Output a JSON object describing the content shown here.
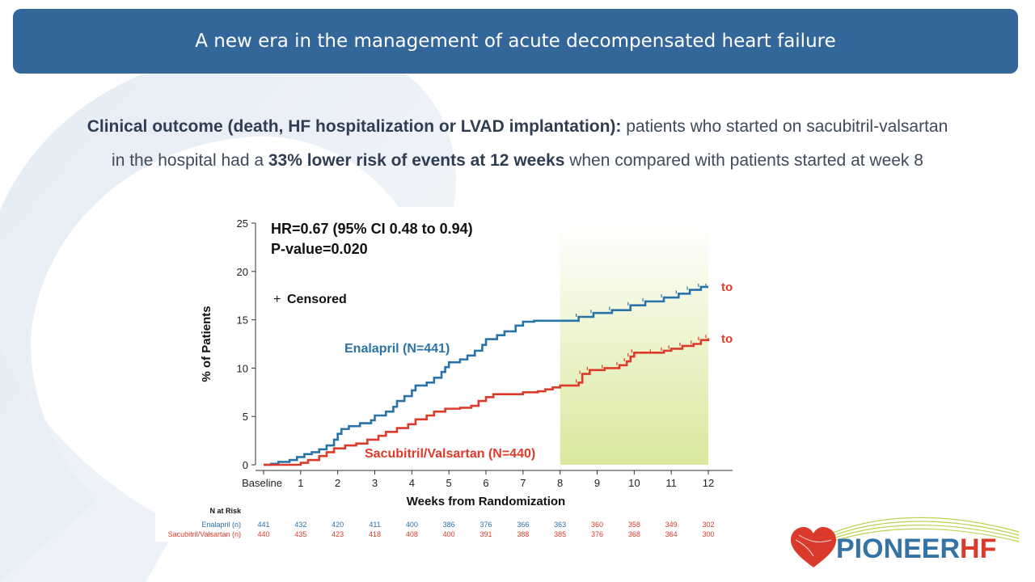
{
  "header": {
    "title": "A new era in the management of acute decompensated heart failure"
  },
  "summary": {
    "line1_bold": "Clinical outcome (death, HF hospitalization or LVAD implantation):",
    "line1_rest": " patients who started on sacubitril-valsartan",
    "line2_start": "in the hospital had a ",
    "line2_bold": "33% lower risk of events at 12 weeks",
    "line2_end": " when compared with patients started at week 8"
  },
  "chart_data": {
    "type": "line",
    "step": true,
    "xlabel": "Weeks from Randomization",
    "ylabel": "% of Patients",
    "xlim": [
      0,
      12
    ],
    "ylim": [
      0,
      25
    ],
    "x_ticks": [
      "Baseline",
      "1",
      "2",
      "3",
      "4",
      "5",
      "6",
      "7",
      "8",
      "9",
      "10",
      "11",
      "12"
    ],
    "y_ticks": [
      "0",
      "5",
      "10",
      "15",
      "20",
      "25"
    ],
    "annotations": {
      "hr": "HR=0.67 (95% CI 0.48 to 0.94)",
      "pvalue": "P-value=0.020",
      "censored": "Censored",
      "censored_symbol": "+",
      "switch_label_1": "to Sacubitril/Valsartan",
      "switch_label_2": "to Sacubitril/Valsartan"
    },
    "shaded_region": {
      "x": [
        8,
        12
      ],
      "color": "#d9e89c"
    },
    "series": [
      {
        "name": "Enalapril (N=441)",
        "color": "#2a73a8",
        "points": [
          [
            0,
            0
          ],
          [
            0.2,
            0.1
          ],
          [
            0.4,
            0.3
          ],
          [
            0.7,
            0.5
          ],
          [
            0.9,
            0.8
          ],
          [
            1.1,
            1.1
          ],
          [
            1.3,
            1.3
          ],
          [
            1.5,
            1.6
          ],
          [
            1.7,
            2.0
          ],
          [
            1.9,
            2.6
          ],
          [
            2.0,
            3.2
          ],
          [
            2.1,
            3.7
          ],
          [
            2.3,
            4.0
          ],
          [
            2.6,
            4.3
          ],
          [
            2.9,
            4.6
          ],
          [
            3.0,
            5.1
          ],
          [
            3.3,
            5.5
          ],
          [
            3.5,
            6.0
          ],
          [
            3.6,
            6.6
          ],
          [
            3.8,
            7.1
          ],
          [
            4.0,
            7.7
          ],
          [
            4.1,
            8.2
          ],
          [
            4.4,
            8.5
          ],
          [
            4.6,
            9.0
          ],
          [
            4.8,
            9.6
          ],
          [
            4.9,
            10.1
          ],
          [
            5.0,
            10.6
          ],
          [
            5.3,
            10.9
          ],
          [
            5.5,
            11.3
          ],
          [
            5.7,
            11.8
          ],
          [
            5.9,
            12.4
          ],
          [
            6.0,
            13.0
          ],
          [
            6.3,
            13.4
          ],
          [
            6.5,
            13.8
          ],
          [
            6.8,
            14.4
          ],
          [
            7.0,
            14.8
          ],
          [
            7.3,
            14.9
          ],
          [
            8.0,
            14.9
          ],
          [
            8.5,
            15.3
          ],
          [
            8.9,
            15.7
          ],
          [
            9.4,
            16.0
          ],
          [
            9.9,
            16.5
          ],
          [
            10.3,
            16.9
          ],
          [
            10.8,
            17.3
          ],
          [
            11.2,
            17.7
          ],
          [
            11.5,
            18.1
          ],
          [
            11.8,
            18.4
          ],
          [
            12.0,
            18.4
          ]
        ]
      },
      {
        "name": "Sacubitril/Valsartan (N=440)",
        "color": "#dd3a2b",
        "points": [
          [
            0,
            0
          ],
          [
            0.6,
            0.0
          ],
          [
            1.0,
            0.2
          ],
          [
            1.2,
            0.5
          ],
          [
            1.5,
            0.9
          ],
          [
            1.7,
            1.3
          ],
          [
            1.9,
            1.7
          ],
          [
            2.2,
            2.0
          ],
          [
            2.5,
            2.2
          ],
          [
            2.8,
            2.6
          ],
          [
            3.1,
            3.0
          ],
          [
            3.3,
            3.4
          ],
          [
            3.6,
            3.8
          ],
          [
            3.9,
            4.2
          ],
          [
            4.1,
            4.7
          ],
          [
            4.4,
            5.1
          ],
          [
            4.6,
            5.5
          ],
          [
            4.9,
            5.8
          ],
          [
            5.3,
            5.9
          ],
          [
            5.6,
            6.1
          ],
          [
            5.8,
            6.6
          ],
          [
            6.0,
            7.0
          ],
          [
            6.2,
            7.3
          ],
          [
            6.6,
            7.3
          ],
          [
            7.0,
            7.5
          ],
          [
            7.4,
            7.6
          ],
          [
            7.6,
            7.8
          ],
          [
            7.8,
            8.0
          ],
          [
            8.0,
            8.2
          ],
          [
            8.5,
            8.5
          ],
          [
            8.6,
            9.4
          ],
          [
            8.8,
            9.8
          ],
          [
            9.2,
            10.0
          ],
          [
            9.6,
            10.3
          ],
          [
            9.8,
            10.7
          ],
          [
            9.9,
            11.2
          ],
          [
            10.0,
            11.6
          ],
          [
            10.5,
            11.6
          ],
          [
            10.8,
            11.8
          ],
          [
            11.0,
            12.0
          ],
          [
            11.3,
            12.3
          ],
          [
            11.6,
            12.5
          ],
          [
            11.8,
            12.9
          ],
          [
            12.0,
            13.1
          ]
        ]
      }
    ],
    "risk_table": {
      "title": "N at Risk",
      "rows": [
        {
          "label": "Enalapril (n)",
          "values": [
            "441",
            "432",
            "420",
            "411",
            "400",
            "386",
            "376",
            "366",
            "363",
            "360",
            "358",
            "349",
            "302"
          ]
        },
        {
          "label": "Sacubitril/Valsartan (n)",
          "values": [
            "440",
            "435",
            "423",
            "418",
            "408",
            "400",
            "391",
            "388",
            "385",
            "376",
            "368",
            "364",
            "300"
          ]
        }
      ]
    }
  },
  "logo": {
    "part1": "PIONEER",
    "part2": "HF"
  },
  "colors": {
    "header_bg": "#336699",
    "enalapril": "#2a73a8",
    "sacubitril": "#dd3a2b",
    "shade": "#d9e89c"
  }
}
